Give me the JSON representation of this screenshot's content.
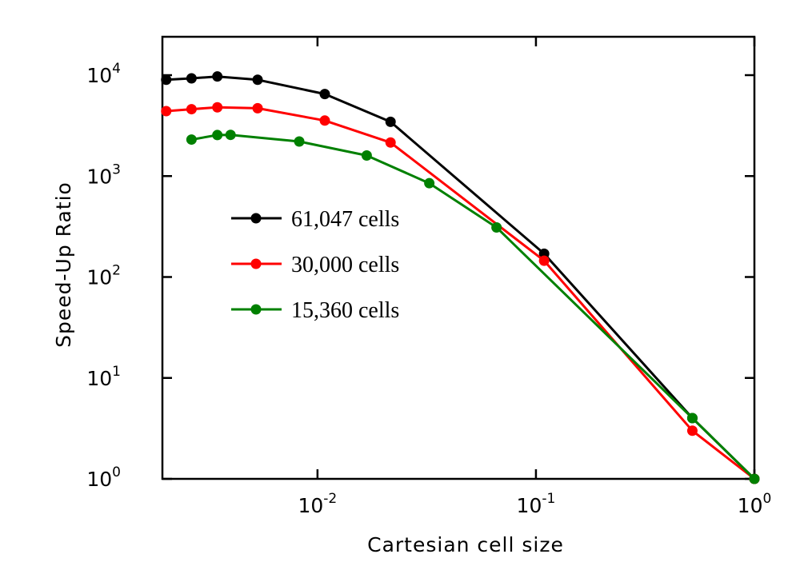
{
  "chart_data": {
    "type": "line",
    "xscale": "log",
    "yscale": "log",
    "xlabel": "Cartesian cell size",
    "ylabel": "Speed-Up Ratio",
    "xlim": [
      0.00195,
      1.0
    ],
    "ylim": [
      1,
      24000
    ],
    "grid": false,
    "legend_position": "center-left",
    "x_ticks": [
      {
        "value": 0.01,
        "base": "10",
        "exp": "-2"
      },
      {
        "value": 0.1,
        "base": "10",
        "exp": "-1"
      },
      {
        "value": 1,
        "base": "10",
        "exp": "0"
      }
    ],
    "y_ticks": [
      {
        "value": 1,
        "base": "10",
        "exp": "0"
      },
      {
        "value": 10,
        "base": "10",
        "exp": "1"
      },
      {
        "value": 100,
        "base": "10",
        "exp": "2"
      },
      {
        "value": 1000,
        "base": "10",
        "exp": "3"
      },
      {
        "value": 10000,
        "base": "10",
        "exp": "4"
      }
    ],
    "series": [
      {
        "name": "61,047 cells",
        "color": "#000000",
        "x": [
          0.00203,
          0.00265,
          0.00348,
          0.00532,
          0.0108,
          0.0216,
          0.109,
          0.52,
          1.0
        ],
        "y": [
          9000,
          9300,
          9700,
          9000,
          6500,
          3450,
          170,
          4.0,
          1.0
        ]
      },
      {
        "name": "30,000 cells",
        "color": "#ff0000",
        "x": [
          0.00203,
          0.00265,
          0.00348,
          0.00532,
          0.0108,
          0.0216,
          0.109,
          0.52,
          1.0
        ],
        "y": [
          4400,
          4600,
          4800,
          4700,
          3550,
          2150,
          145,
          3.0,
          1.0
        ]
      },
      {
        "name": "15,360 cells",
        "color": "#008000",
        "x": [
          0.00265,
          0.00348,
          0.004,
          0.00825,
          0.0168,
          0.0325,
          0.066,
          0.52,
          1.0
        ],
        "y": [
          2300,
          2550,
          2560,
          2200,
          1600,
          850,
          310,
          4.0,
          1.0
        ]
      }
    ]
  }
}
